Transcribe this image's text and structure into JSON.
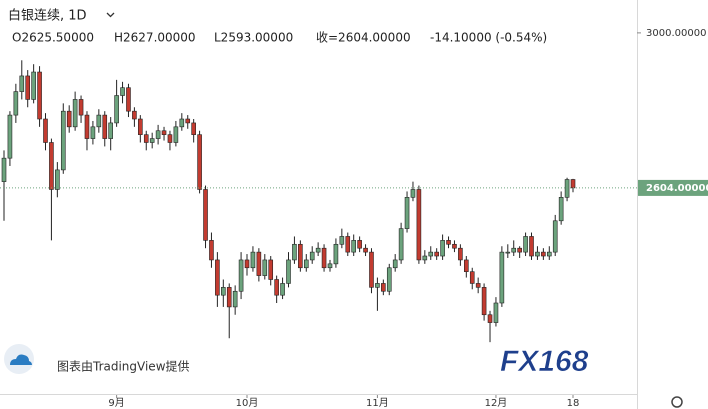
{
  "chart_data": {
    "type": "candlestick",
    "title": "白银连续, 1D",
    "ohlc_labels": [
      "O2625.50000",
      "H2627.00000",
      "L2593.00000",
      "收=2604.00000",
      "-14.10000 (-0.54%)"
    ],
    "watermark": "图表由TradingView提供",
    "logo": "FX168",
    "up_color": "#6ca37d",
    "down_color": "#c23b30",
    "ylim": [
      2075,
      3084
    ],
    "yticks": [
      {
        "value": 3000,
        "label": "3000.00000"
      }
    ],
    "last_price": {
      "value": 2604,
      "label": "2604.00000"
    },
    "categories": [
      null,
      null,
      null,
      null,
      null,
      null,
      null,
      null,
      null,
      null,
      null,
      null,
      null,
      null,
      null,
      null,
      null,
      null,
      null,
      "9月",
      null,
      null,
      null,
      null,
      null,
      null,
      null,
      null,
      null,
      null,
      null,
      null,
      null,
      null,
      null,
      null,
      null,
      null,
      null,
      null,
      null,
      "10月",
      null,
      null,
      null,
      null,
      null,
      null,
      null,
      null,
      null,
      null,
      null,
      null,
      null,
      null,
      null,
      null,
      null,
      null,
      null,
      null,
      null,
      "11月",
      null,
      null,
      null,
      null,
      null,
      null,
      null,
      null,
      null,
      null,
      null,
      null,
      null,
      null,
      null,
      null,
      null,
      null,
      null,
      "12月",
      null,
      null,
      null,
      null,
      null,
      null,
      null,
      null,
      null,
      null,
      null,
      null,
      "18"
    ],
    "open": [
      2620,
      2680,
      2790,
      2850,
      2890,
      2830,
      2900,
      2780,
      2720,
      2600,
      2650,
      2800,
      2760,
      2830,
      2790,
      2730,
      2760,
      2790,
      2730,
      2770,
      2840,
      2860,
      2800,
      2780,
      2740,
      2720,
      2730,
      2750,
      2740,
      2720,
      2760,
      2780,
      2770,
      2740,
      2600,
      2470,
      2420,
      2330,
      2350,
      2300,
      2340,
      2420,
      2400,
      2440,
      2380,
      2420,
      2370,
      2330,
      2360,
      2420,
      2460,
      2400,
      2420,
      2440,
      2450,
      2400,
      2410,
      2460,
      2480,
      2440,
      2470,
      2450,
      2440,
      2350,
      2360,
      2340,
      2400,
      2420,
      2500,
      2580,
      2600,
      2420,
      2430,
      2440,
      2430,
      2470,
      2460,
      2450,
      2420,
      2390,
      2360,
      2350,
      2280,
      2260,
      2310,
      2440,
      2440,
      2450,
      2440,
      2480,
      2430,
      2440,
      2430,
      2440,
      2520,
      2580,
      2625.5
    ],
    "high": [
      2700,
      2800,
      2870,
      2930,
      2905,
      2920,
      2915,
      2795,
      2730,
      2670,
      2820,
      2815,
      2850,
      2840,
      2800,
      2775,
      2805,
      2800,
      2785,
      2880,
      2875,
      2870,
      2810,
      2790,
      2750,
      2745,
      2765,
      2760,
      2750,
      2775,
      2795,
      2790,
      2780,
      2750,
      2610,
      2490,
      2440,
      2370,
      2360,
      2355,
      2440,
      2435,
      2455,
      2450,
      2435,
      2430,
      2380,
      2375,
      2440,
      2480,
      2470,
      2435,
      2455,
      2465,
      2460,
      2420,
      2475,
      2500,
      2490,
      2485,
      2480,
      2460,
      2450,
      2375,
      2370,
      2410,
      2435,
      2515,
      2595,
      2620,
      2610,
      2445,
      2455,
      2450,
      2485,
      2480,
      2470,
      2460,
      2430,
      2400,
      2375,
      2360,
      2290,
      2325,
      2455,
      2460,
      2470,
      2455,
      2490,
      2490,
      2455,
      2450,
      2455,
      2535,
      2595,
      2630,
      2627
    ],
    "low": [
      2520,
      2660,
      2770,
      2830,
      2810,
      2820,
      2760,
      2700,
      2470,
      2580,
      2640,
      2745,
      2750,
      2770,
      2700,
      2715,
      2745,
      2710,
      2700,
      2760,
      2820,
      2785,
      2760,
      2720,
      2700,
      2705,
      2715,
      2725,
      2700,
      2710,
      2750,
      2755,
      2720,
      2590,
      2450,
      2400,
      2300,
      2300,
      2220,
      2280,
      2320,
      2380,
      2390,
      2365,
      2370,
      2355,
      2310,
      2320,
      2350,
      2410,
      2390,
      2390,
      2410,
      2430,
      2390,
      2390,
      2400,
      2450,
      2430,
      2430,
      2440,
      2430,
      2335,
      2290,
      2330,
      2330,
      2390,
      2410,
      2490,
      2570,
      2410,
      2410,
      2420,
      2420,
      2420,
      2450,
      2440,
      2405,
      2375,
      2345,
      2335,
      2265,
      2210,
      2250,
      2300,
      2425,
      2430,
      2425,
      2430,
      2420,
      2420,
      2420,
      2420,
      2430,
      2510,
      2570,
      2593
    ],
    "close": [
      2680,
      2790,
      2850,
      2890,
      2830,
      2900,
      2780,
      2720,
      2600,
      2650,
      2800,
      2760,
      2830,
      2790,
      2730,
      2760,
      2790,
      2730,
      2770,
      2840,
      2860,
      2800,
      2780,
      2740,
      2720,
      2730,
      2750,
      2740,
      2720,
      2760,
      2780,
      2770,
      2740,
      2600,
      2470,
      2420,
      2330,
      2350,
      2300,
      2340,
      2420,
      2400,
      2440,
      2380,
      2420,
      2370,
      2330,
      2360,
      2420,
      2460,
      2400,
      2420,
      2440,
      2450,
      2400,
      2410,
      2460,
      2480,
      2440,
      2470,
      2450,
      2440,
      2350,
      2360,
      2340,
      2400,
      2420,
      2500,
      2580,
      2600,
      2420,
      2430,
      2440,
      2430,
      2470,
      2460,
      2450,
      2420,
      2390,
      2360,
      2350,
      2280,
      2260,
      2310,
      2440,
      2440,
      2450,
      2440,
      2480,
      2430,
      2440,
      2430,
      2440,
      2520,
      2580,
      2625.5,
      2604
    ]
  }
}
